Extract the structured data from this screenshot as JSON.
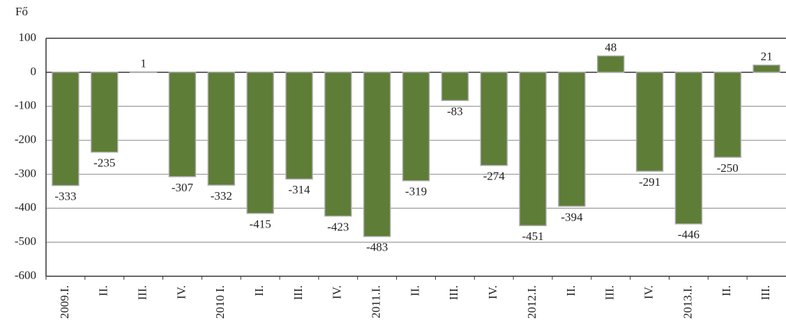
{
  "chart_data": {
    "type": "bar",
    "y_label": "Fő",
    "categories": [
      "2009.I.",
      "II.",
      "III.",
      "IV.",
      "2010 I.",
      "II.",
      "III.",
      "IV.",
      "2011.I.",
      "II.",
      "III.",
      "IV.",
      "2012.I.",
      "II.",
      "III.",
      "IV.",
      "2013.I.",
      "II.",
      "III."
    ],
    "values": [
      -333,
      -235,
      1,
      -307,
      -332,
      -415,
      -314,
      -423,
      -483,
      -319,
      -83,
      -274,
      -451,
      -394,
      48,
      -291,
      -446,
      -250,
      21
    ],
    "color": "#5e7d37",
    "ylim": [
      -600,
      100
    ],
    "yticks": [
      -600,
      -500,
      -400,
      -300,
      -200,
      -100,
      0,
      100
    ],
    "grid": true
  }
}
